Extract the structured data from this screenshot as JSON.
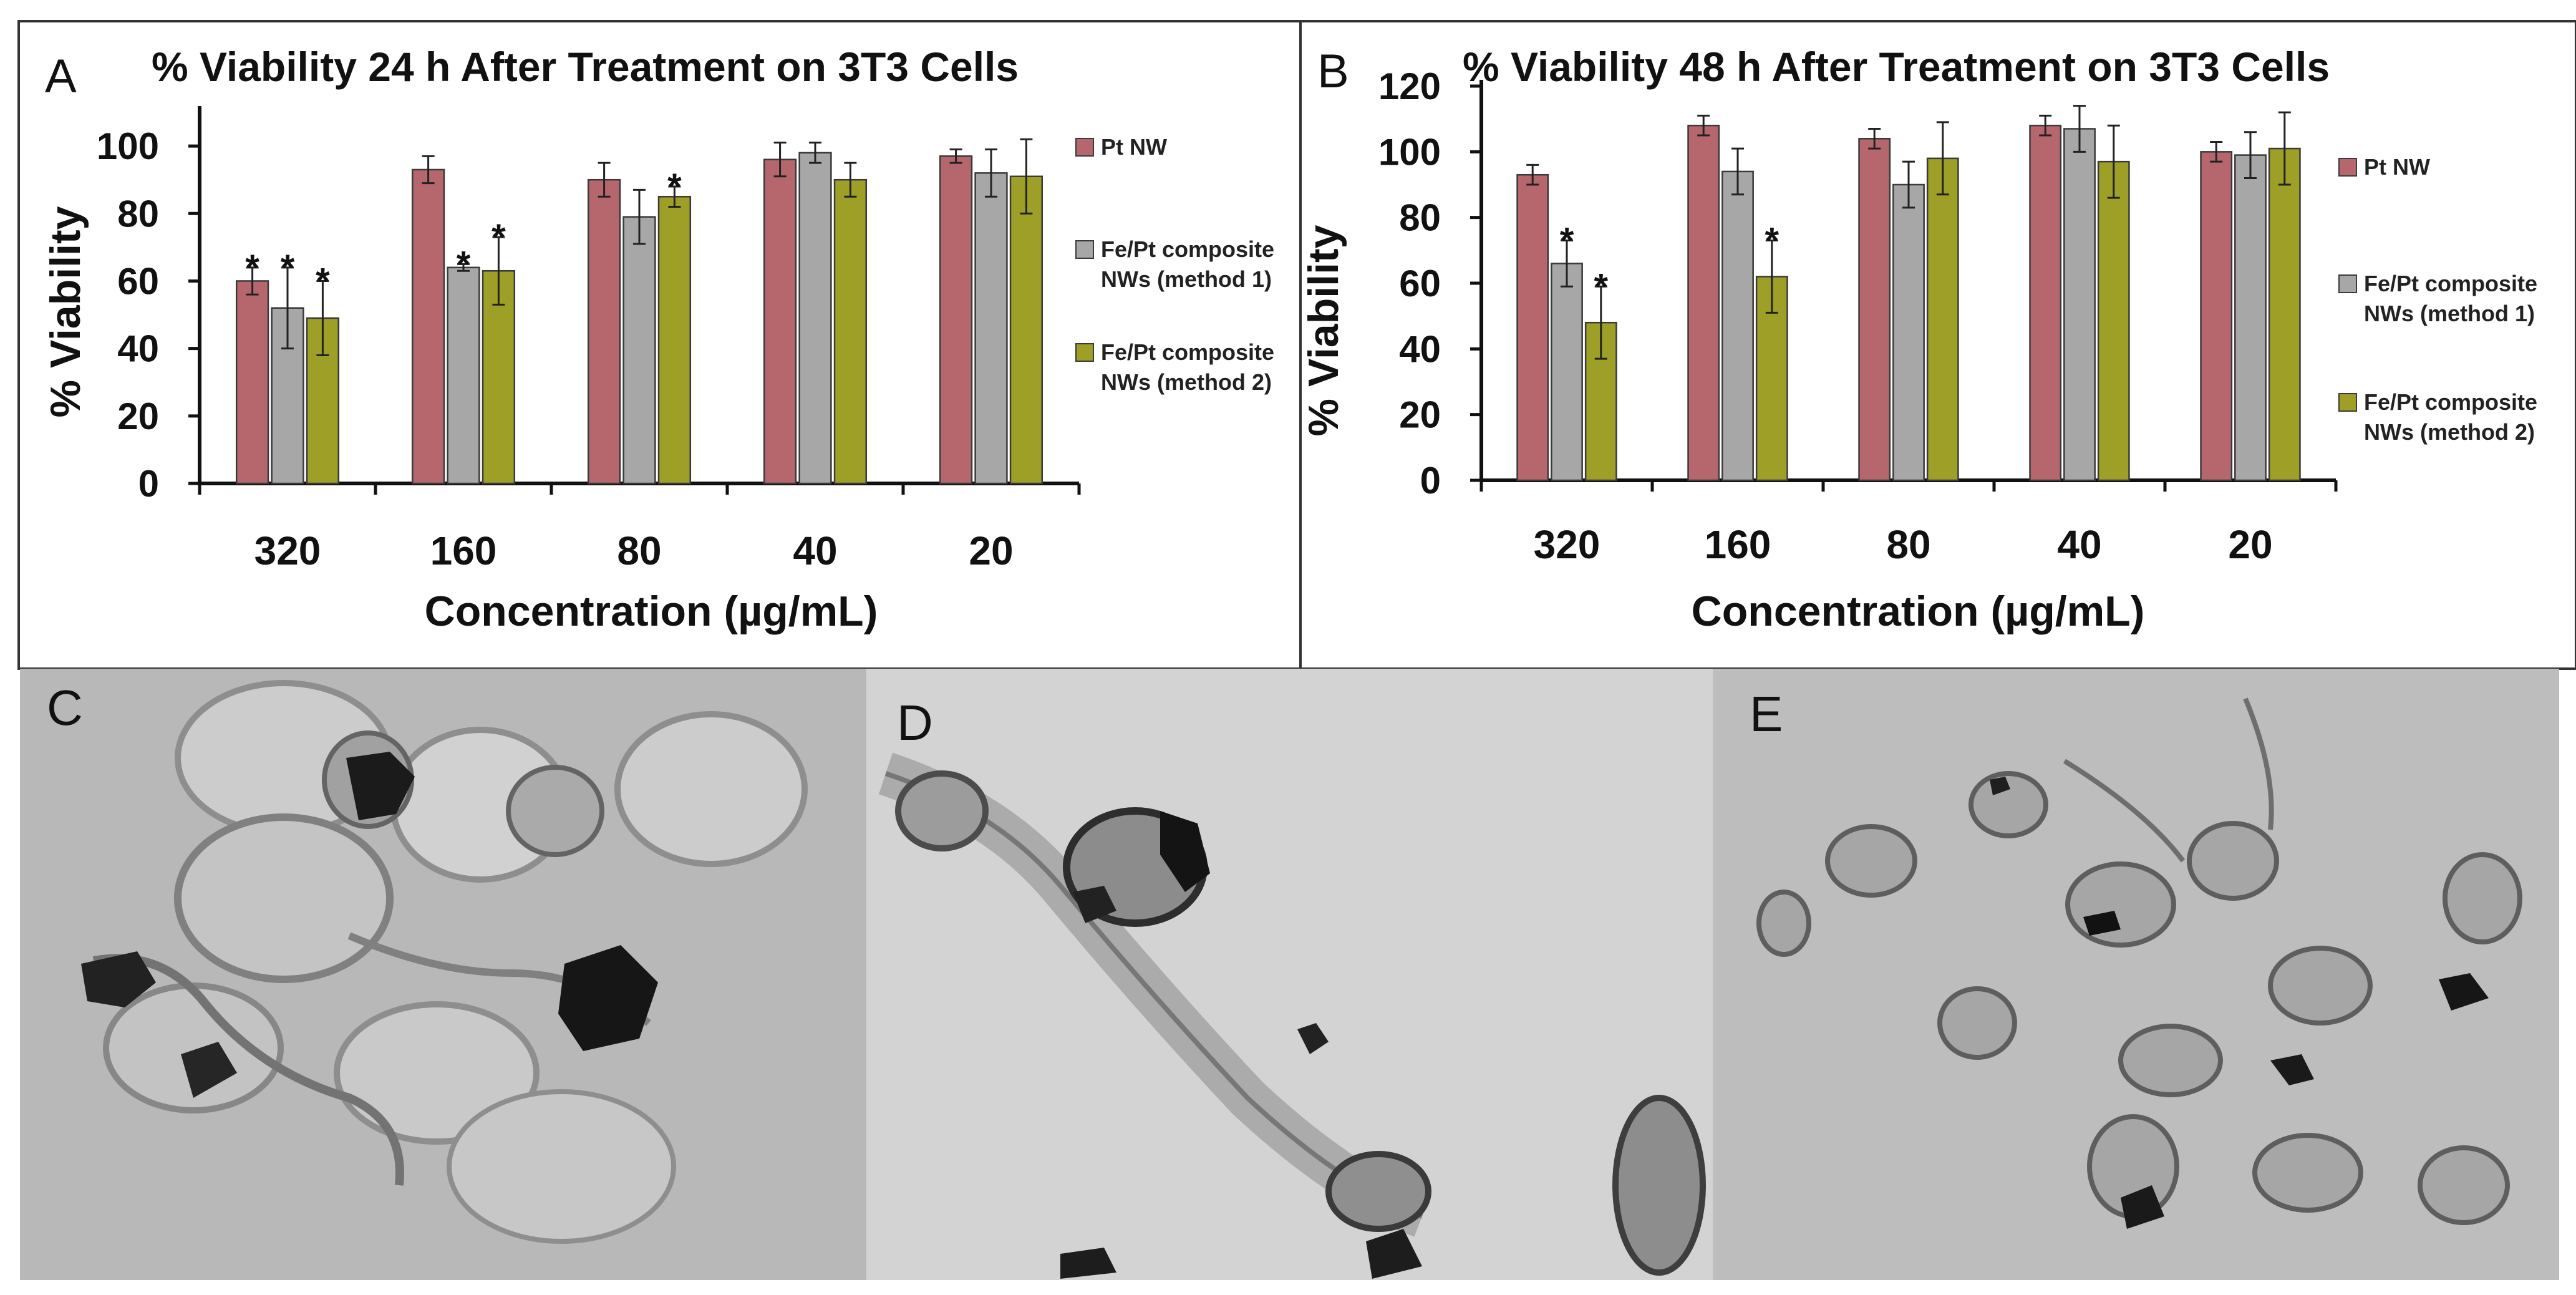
{
  "colors": {
    "pt_nw": "#b5676d",
    "method1": "#a7a7a7",
    "method2": "#9e9f27",
    "frame": "#333333"
  },
  "panels": {
    "C": {
      "letter": "C"
    },
    "D": {
      "letter": "D"
    },
    "E": {
      "letter": "E"
    }
  },
  "chart_data": [
    {
      "panel": "A",
      "type": "bar",
      "title": "% Viability 24 h After Treatment on 3T3 Cells",
      "xlabel": "Concentration (µg/mL)",
      "ylabel": "% Viability",
      "ylim": [
        0,
        110
      ],
      "yticks": [
        0,
        20,
        40,
        60,
        80,
        100
      ],
      "categories": [
        "320",
        "160",
        "80",
        "40",
        "20"
      ],
      "legend_position": "right",
      "series": [
        {
          "name": "Pt NW",
          "color": "#b5676d",
          "values": [
            60,
            93,
            90,
            96,
            97
          ],
          "errors": [
            4,
            4,
            5,
            5,
            2
          ],
          "significant": [
            true,
            false,
            false,
            false,
            false
          ]
        },
        {
          "name": "Fe/Pt composite NWs (method 1)",
          "color": "#a7a7a7",
          "values": [
            52,
            64,
            79,
            98,
            92
          ],
          "errors": [
            12,
            1,
            8,
            3,
            7
          ],
          "significant": [
            true,
            true,
            false,
            false,
            false
          ]
        },
        {
          "name": "Fe/Pt composite NWs (method 2)",
          "color": "#9e9f27",
          "values": [
            49,
            63,
            85,
            90,
            91
          ],
          "errors": [
            11,
            10,
            3,
            5,
            11
          ],
          "significant": [
            true,
            true,
            true,
            false,
            false
          ]
        }
      ]
    },
    {
      "panel": "B",
      "type": "bar",
      "title": "% Viability 48 h After Treatment on 3T3 Cells",
      "xlabel": "Concentration (µg/mL)",
      "ylabel": "% Viability",
      "ylim": [
        0,
        120
      ],
      "yticks": [
        0,
        20,
        40,
        60,
        80,
        100,
        120
      ],
      "categories": [
        "320",
        "160",
        "80",
        "40",
        "20"
      ],
      "legend_position": "right",
      "series": [
        {
          "name": "Pt NW",
          "color": "#b5676d",
          "values": [
            93,
            108,
            104,
            108,
            100
          ],
          "errors": [
            3,
            3,
            3,
            3,
            3
          ],
          "significant": [
            false,
            false,
            false,
            false,
            false
          ]
        },
        {
          "name": "Fe/Pt composite NWs (method 1)",
          "color": "#a7a7a7",
          "values": [
            66,
            94,
            90,
            107,
            99
          ],
          "errors": [
            7,
            7,
            7,
            7,
            7
          ],
          "significant": [
            true,
            false,
            false,
            false,
            false
          ]
        },
        {
          "name": "Fe/Pt composite NWs (method 2)",
          "color": "#9e9f27",
          "values": [
            48,
            62,
            98,
            97,
            101
          ],
          "errors": [
            11,
            11,
            11,
            11,
            11
          ],
          "significant": [
            true,
            true,
            false,
            false,
            false
          ]
        }
      ]
    }
  ]
}
